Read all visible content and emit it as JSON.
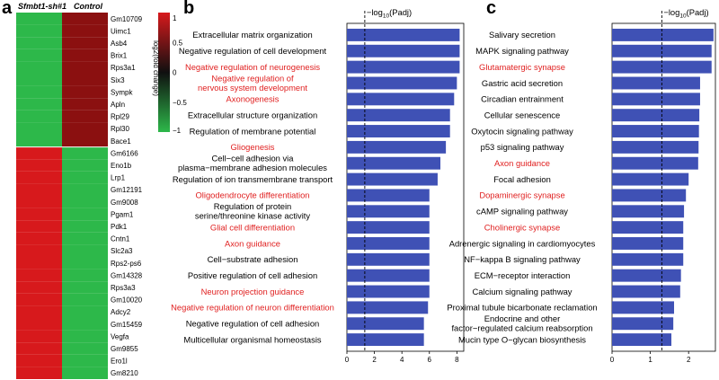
{
  "panels": {
    "a": "a",
    "b": "b",
    "c": "c"
  },
  "heatmap": {
    "col_labels": [
      "Sfmbt1-sh#1",
      "Control"
    ],
    "legend_title": "log2(fold change)",
    "legend_ticks": [
      "1",
      "0.5",
      "0",
      "−0.5",
      "−1"
    ],
    "colors": {
      "high": "#d7191c",
      "mid": "#101010",
      "low": "#2db84a",
      "up_dark": "#8b1010"
    },
    "genes": [
      {
        "name": "Gm10709",
        "value": -1
      },
      {
        "name": "Uimc1",
        "value": -1
      },
      {
        "name": "Asb4",
        "value": -1
      },
      {
        "name": "Brix1",
        "value": -1
      },
      {
        "name": "Rps3a1",
        "value": -1
      },
      {
        "name": "Six3",
        "value": -1
      },
      {
        "name": "Sympk",
        "value": -1
      },
      {
        "name": "Apln",
        "value": -1
      },
      {
        "name": "Rpl29",
        "value": -1
      },
      {
        "name": "Rpl30",
        "value": -1
      },
      {
        "name": "Bace1",
        "value": -1
      },
      {
        "name": "Gm6166",
        "value": 1
      },
      {
        "name": "Eno1b",
        "value": 1
      },
      {
        "name": "Lrp1",
        "value": 1
      },
      {
        "name": "Gm12191",
        "value": 1
      },
      {
        "name": "Gm9008",
        "value": 1
      },
      {
        "name": "Pgam1",
        "value": 1
      },
      {
        "name": "Pdk1",
        "value": 1
      },
      {
        "name": "Cntn1",
        "value": 1
      },
      {
        "name": "Slc2a3",
        "value": 1
      },
      {
        "name": "Rps2-ps6",
        "value": 1
      },
      {
        "name": "Gm14328",
        "value": 1
      },
      {
        "name": "Rps3a3",
        "value": 1
      },
      {
        "name": "Gm10020",
        "value": 1
      },
      {
        "name": "Adcy2",
        "value": 1
      },
      {
        "name": "Gm15459",
        "value": 1
      },
      {
        "name": "Vegfa",
        "value": 1
      },
      {
        "name": "Gm9855",
        "value": 1
      },
      {
        "name": "Ero1l",
        "value": 1
      },
      {
        "name": "Gm8210",
        "value": 1
      }
    ]
  },
  "chart_data": [
    {
      "type": "bar",
      "orientation": "horizontal",
      "panel": "b",
      "title": "−log10(Padj)",
      "xlim": [
        0,
        8.5
      ],
      "ticks": [
        0,
        2,
        4,
        6,
        8
      ],
      "threshold": 1.3,
      "bar_color": "#3f51b5",
      "highlight_color": "#e02020",
      "categories": [
        {
          "label": "Extracellular matrix organization",
          "value": 8.2,
          "highlight": false
        },
        {
          "label": "Negative regulation of cell development",
          "value": 8.2,
          "highlight": false
        },
        {
          "label": "Negative regulation of neurogenesis",
          "value": 8.2,
          "highlight": true
        },
        {
          "label": "Negative regulation of nervous system development",
          "value": 8.0,
          "highlight": true
        },
        {
          "label": "Axonogenesis",
          "value": 7.8,
          "highlight": true
        },
        {
          "label": "Extracellular structure organization",
          "value": 7.5,
          "highlight": false
        },
        {
          "label": "Regulation of membrane potential",
          "value": 7.5,
          "highlight": false
        },
        {
          "label": "Gliogenesis",
          "value": 7.2,
          "highlight": true
        },
        {
          "label": "Cell−cell adhesion via plasma−membrane adhesion molecules",
          "value": 6.8,
          "highlight": false
        },
        {
          "label": "Regulation of ion transmembrane transport",
          "value": 6.6,
          "highlight": false
        },
        {
          "label": "Oligodendrocyte differentiation",
          "value": 6.0,
          "highlight": true
        },
        {
          "label": "Regulation of protein serine/threonine kinase activity",
          "value": 6.0,
          "highlight": false
        },
        {
          "label": "Glial cell differentiation",
          "value": 6.0,
          "highlight": true
        },
        {
          "label": "Axon guidance",
          "value": 6.0,
          "highlight": true
        },
        {
          "label": "Cell−substrate adhesion",
          "value": 6.0,
          "highlight": false
        },
        {
          "label": "Positive regulation of cell adhesion",
          "value": 6.0,
          "highlight": false
        },
        {
          "label": "Neuron projection guidance",
          "value": 6.0,
          "highlight": true
        },
        {
          "label": "Negative regulation of neuron differentiation",
          "value": 5.9,
          "highlight": true
        },
        {
          "label": "Negative regulation of cell adhesion",
          "value": 5.6,
          "highlight": false
        },
        {
          "label": "Multicellular organismal homeostasis",
          "value": 5.6,
          "highlight": false
        }
      ]
    },
    {
      "type": "bar",
      "orientation": "horizontal",
      "panel": "c",
      "title": "−log10(Padj)",
      "xlim": [
        0,
        2.7
      ],
      "ticks": [
        0,
        1,
        2
      ],
      "threshold": 1.3,
      "bar_color": "#3f51b5",
      "highlight_color": "#e02020",
      "categories": [
        {
          "label": "Salivary secretion",
          "value": 2.65,
          "highlight": false
        },
        {
          "label": "MAPK signaling pathway",
          "value": 2.6,
          "highlight": false
        },
        {
          "label": "Glutamatergic synapse",
          "value": 2.6,
          "highlight": true
        },
        {
          "label": "Gastric acid secretion",
          "value": 2.3,
          "highlight": false
        },
        {
          "label": "Circadian entrainment",
          "value": 2.3,
          "highlight": false
        },
        {
          "label": "Cellular senescence",
          "value": 2.28,
          "highlight": false
        },
        {
          "label": "Oxytocin signaling pathway",
          "value": 2.27,
          "highlight": false
        },
        {
          "label": "p53 signaling pathway",
          "value": 2.26,
          "highlight": false
        },
        {
          "label": "Axon guidance",
          "value": 2.25,
          "highlight": true
        },
        {
          "label": "Focal adhesion",
          "value": 2.0,
          "highlight": false
        },
        {
          "label": "Dopaminergic synapse",
          "value": 1.93,
          "highlight": true
        },
        {
          "label": "cAMP signaling pathway",
          "value": 1.88,
          "highlight": false
        },
        {
          "label": "Cholinergic synapse",
          "value": 1.86,
          "highlight": true
        },
        {
          "label": "Adrenergic signaling in cardiomyocytes",
          "value": 1.86,
          "highlight": false
        },
        {
          "label": "NF−kappa B signaling pathway",
          "value": 1.86,
          "highlight": false
        },
        {
          "label": "ECM−receptor interaction",
          "value": 1.8,
          "highlight": false
        },
        {
          "label": "Calcium signaling pathway",
          "value": 1.78,
          "highlight": false
        },
        {
          "label": "Proximal tubule bicarbonate reclamation",
          "value": 1.62,
          "highlight": false
        },
        {
          "label": "Endocrine and other factor−regulated calcium reabsorption",
          "value": 1.6,
          "highlight": false
        },
        {
          "label": "Mucin type O−glycan biosynthesis",
          "value": 1.55,
          "highlight": false
        }
      ]
    }
  ]
}
